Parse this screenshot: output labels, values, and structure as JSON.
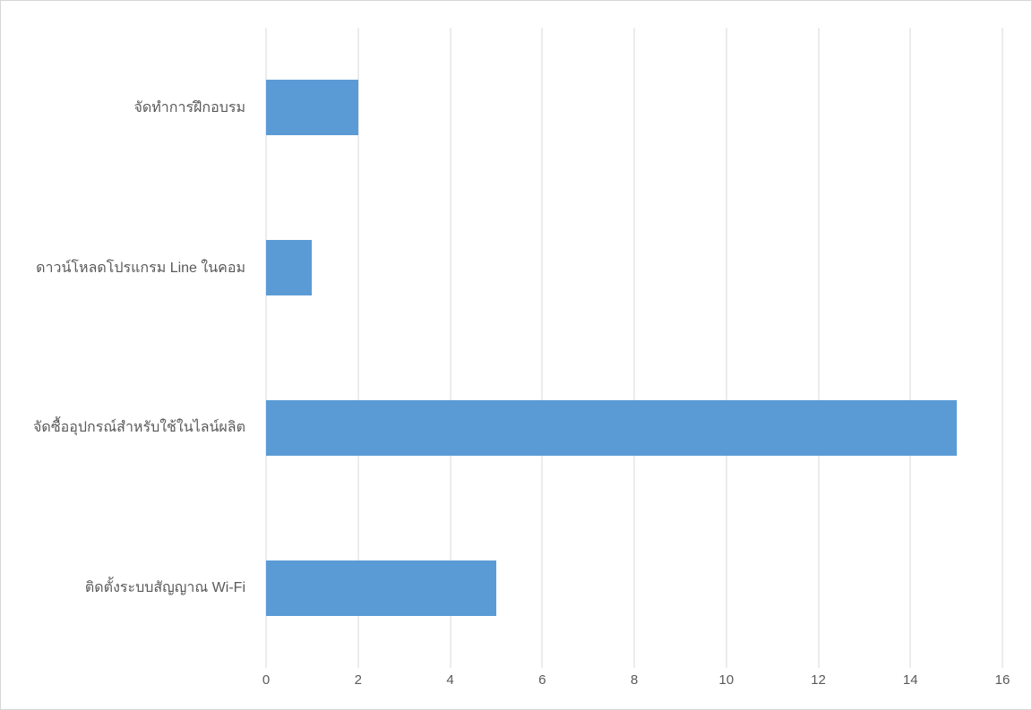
{
  "chart_data": {
    "type": "bar",
    "orientation": "horizontal",
    "title": "",
    "xlabel": "",
    "ylabel": "",
    "categories_top_to_bottom": [
      "จัดทำการฝึกอบรม",
      "ดาวน์โหลดโปรแกรม Line ในคอม",
      "จัดซื้ออุปกรณ์สำหรับใช้ในไลน์ผลิต",
      "ติดตั้งระบบสัญญาณ Wi-Fi"
    ],
    "values": [
      2,
      1,
      15,
      5
    ],
    "xlim": [
      0,
      16
    ],
    "x_ticks": [
      0,
      2,
      4,
      6,
      8,
      10,
      12,
      14,
      16
    ],
    "grid": "vertical-gridlines-on",
    "legend": "none",
    "colors": {
      "bar": "#5b9bd5",
      "gridline": "#d9d9d9",
      "tick_label": "#595959",
      "category_label": "#595959",
      "frame_border": "#d6d6d6",
      "background": "#ffffff"
    }
  }
}
